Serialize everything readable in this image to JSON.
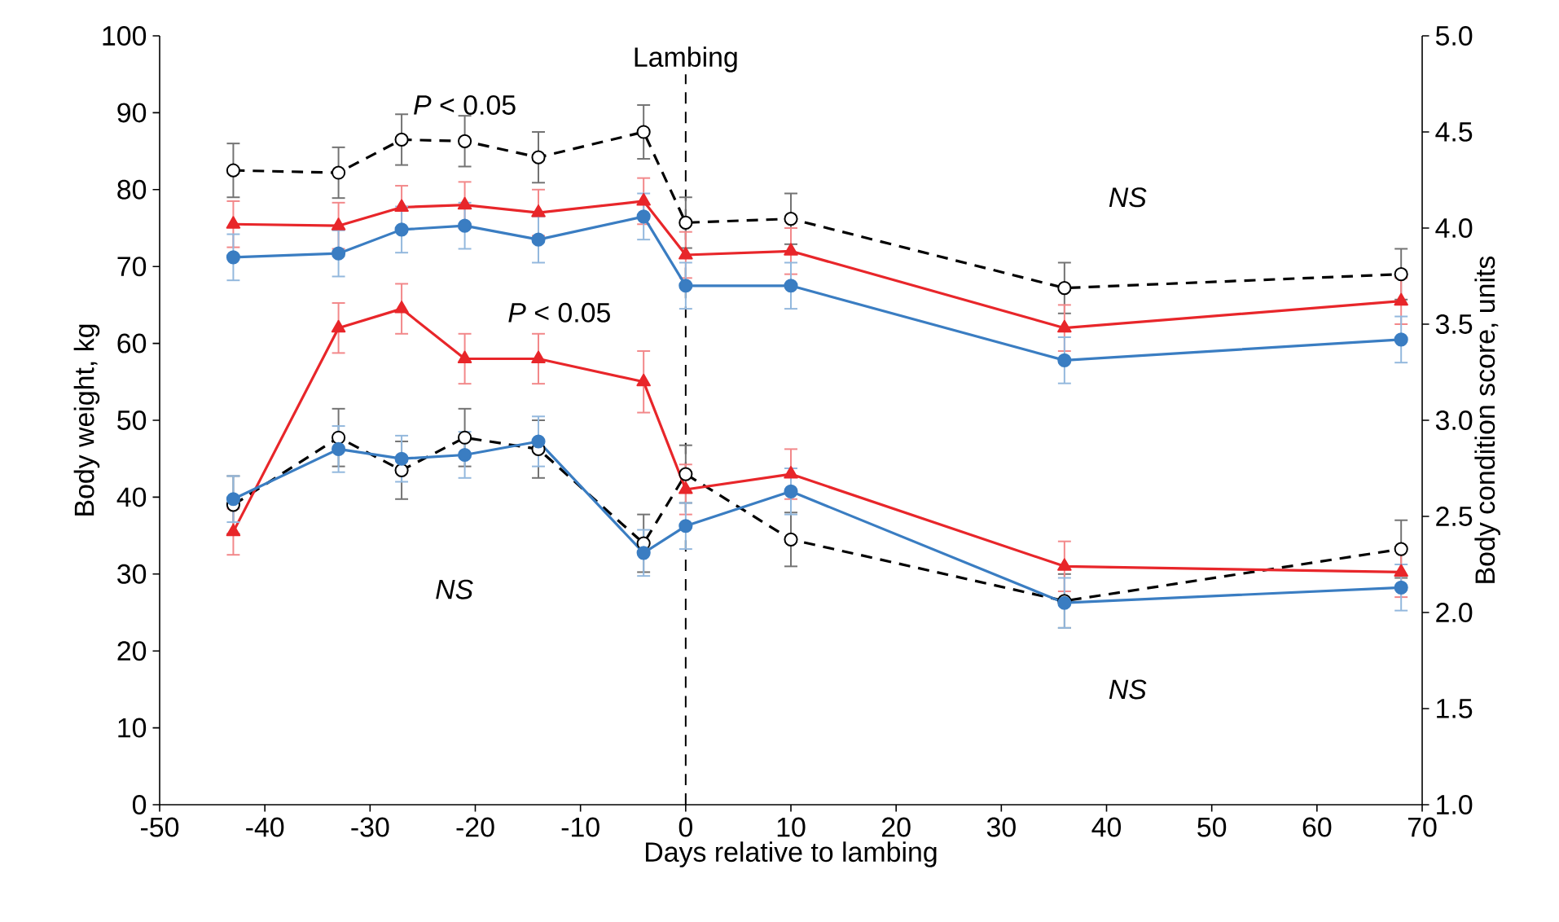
{
  "chart_data": {
    "type": "line",
    "xlabel": "Days relative to lambing",
    "ylabel": "Body weight, kg",
    "y2label": "Body condition score, units",
    "xlim": [
      -50,
      70
    ],
    "xticks": [
      -50,
      -40,
      -30,
      -20,
      -10,
      0,
      10,
      20,
      30,
      40,
      50,
      60,
      70
    ],
    "ylim": [
      0,
      100
    ],
    "yticks": [
      0,
      10,
      20,
      30,
      40,
      50,
      60,
      70,
      80,
      90,
      100
    ],
    "y2lim": [
      1.0,
      5.0
    ],
    "y2ticks": [
      {
        "value": 1.0,
        "label": "1.0"
      },
      {
        "value": 1.5,
        "label": "1.5"
      },
      {
        "value": 2.0,
        "label": "2.0"
      },
      {
        "value": 2.5,
        "label": "2.5"
      },
      {
        "value": 3.0,
        "label": "3.0"
      },
      {
        "value": 3.5,
        "label": "3.5"
      },
      {
        "value": 4.0,
        "label": "4.0"
      },
      {
        "value": 4.5,
        "label": "4.5"
      },
      {
        "value": 5.0,
        "label": "5.0"
      }
    ],
    "x": [
      -43,
      -33,
      -27,
      -21,
      -14,
      -4,
      0,
      10,
      36,
      68
    ],
    "series": [
      {
        "color": "#000000",
        "marker": "circle",
        "line_style": "dashed",
        "values": [
          82.5,
          82.2,
          86.5,
          86.3,
          84.2,
          87.5,
          75.7,
          76.2,
          67.2,
          69.0
        ],
        "errors": [
          3.5,
          3.3,
          3.3,
          3.3,
          3.3,
          3.5,
          3.3,
          3.3,
          3.3,
          3.3
        ]
      },
      {
        "color": "#e8262a",
        "marker": "triangle",
        "line_style": "solid",
        "values": [
          75.5,
          75.3,
          77.7,
          78.0,
          77.0,
          78.5,
          71.5,
          72.0,
          62.0,
          65.5
        ],
        "errors": [
          3.0,
          3.0,
          2.8,
          3.0,
          3.0,
          3.0,
          3.0,
          3.0,
          3.0,
          3.0
        ]
      },
      {
        "color": "#3a7dc2",
        "marker": "circle",
        "line_style": "solid",
        "values": [
          71.2,
          71.7,
          74.8,
          75.3,
          73.5,
          76.5,
          67.5,
          67.5,
          57.8,
          60.5
        ],
        "errors": [
          3.0,
          3.0,
          3.0,
          3.0,
          3.0,
          3.0,
          3.0,
          3.0,
          3.0,
          3.0
        ]
      },
      {
        "axis": "y2",
        "color": "#000000",
        "marker": "circle",
        "line_style": "dashed",
        "values": [
          2.56,
          2.91,
          2.74,
          2.91,
          2.85,
          2.36,
          2.72,
          2.38,
          2.06,
          2.33
        ],
        "errors": [
          0.15,
          0.15,
          0.15,
          0.15,
          0.15,
          0.15,
          0.15,
          0.14,
          0.14,
          0.15
        ]
      },
      {
        "axis": "y2",
        "color": "#e8262a",
        "marker": "triangle",
        "line_style": "solid",
        "values": [
          2.42,
          3.48,
          3.58,
          3.32,
          3.32,
          3.2,
          2.64,
          2.72,
          2.24,
          2.21
        ],
        "errors": [
          0.12,
          0.13,
          0.13,
          0.13,
          0.13,
          0.16,
          0.13,
          0.13,
          0.13,
          0.13
        ]
      },
      {
        "axis": "y2",
        "color": "#3a7dc2",
        "marker": "circle",
        "line_style": "solid",
        "values": [
          2.59,
          2.85,
          2.8,
          2.82,
          2.89,
          2.31,
          2.45,
          2.63,
          2.05,
          2.13
        ],
        "errors": [
          0.12,
          0.12,
          0.12,
          0.12,
          0.13,
          0.12,
          0.12,
          0.12,
          0.13,
          0.12
        ]
      }
    ],
    "ref_lines": [
      {
        "axis": "x",
        "value": 0,
        "label": "Lambing",
        "color": "#000000",
        "line_style": "dashed"
      }
    ],
    "annotations": [
      "*P* < 0.05",
      "*P* < 0.05",
      "*NS*",
      "*NS*",
      "*NS*"
    ]
  }
}
